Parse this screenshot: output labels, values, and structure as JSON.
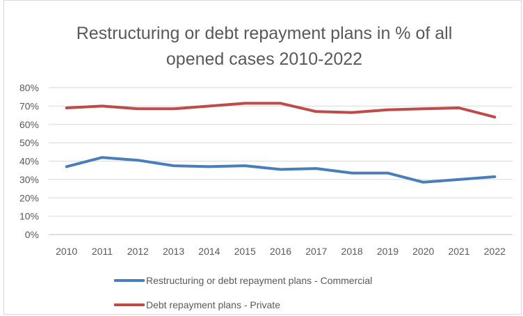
{
  "chart_data": {
    "type": "line",
    "title": "Restructuring or debt repayment plans in % of all opened cases 2010-2022",
    "title_lines": [
      "Restructuring or debt repayment plans in % of all",
      "opened cases 2010-2022"
    ],
    "x": [
      "2010",
      "2011",
      "2012",
      "2013",
      "2014",
      "2015",
      "2016",
      "2017",
      "2018",
      "2019",
      "2020",
      "2021",
      "2022"
    ],
    "y_ticks": [
      "0%",
      "10%",
      "20%",
      "30%",
      "40%",
      "50%",
      "60%",
      "70%",
      "80%"
    ],
    "ylim": [
      0,
      80
    ],
    "grid": true,
    "legend_position": "bottom",
    "series": [
      {
        "name": "Restructuring or debt repayment plans - Commercial",
        "color": "#4a7ebb",
        "values": [
          37,
          42,
          40.5,
          37.5,
          37,
          37.5,
          35.5,
          36,
          33.5,
          33.5,
          28.5,
          30,
          31.5
        ]
      },
      {
        "name": "Debt repayment plans - Private",
        "color": "#be4b48",
        "values": [
          69,
          70,
          68.5,
          68.5,
          70,
          71.5,
          71.5,
          67,
          66.5,
          68,
          68.5,
          69,
          64
        ]
      }
    ]
  }
}
